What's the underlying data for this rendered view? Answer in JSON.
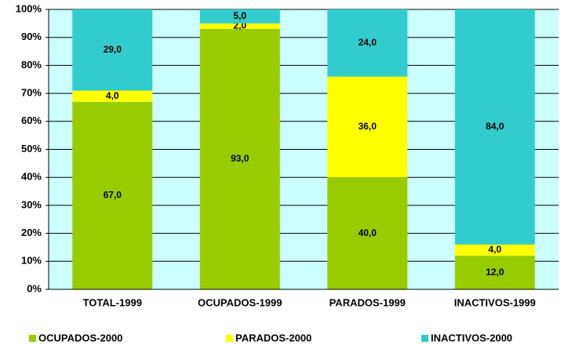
{
  "chart_data": {
    "type": "stacked_bar_100",
    "categories": [
      "TOTAL-1999",
      "OCUPADOS-1999",
      "PARADOS-1999",
      "INACTIVOS-1999"
    ],
    "series": [
      {
        "name": "OCUPADOS-2000",
        "color": "#99cc00",
        "values": [
          67,
          93,
          40,
          12
        ],
        "value_labels": [
          "67,0",
          "93,0",
          "40,0",
          "12,0"
        ]
      },
      {
        "name": "PARADOS-2000",
        "color": "#ffff00",
        "values": [
          4,
          2,
          36,
          4
        ],
        "value_labels": [
          "4,0",
          "2,0",
          "36,0",
          "4,0"
        ]
      },
      {
        "name": "INACTIVOS-2000",
        "color": "#33cccc",
        "values": [
          29,
          5,
          24,
          84
        ],
        "value_labels": [
          "29,0",
          "5,0",
          "24,0",
          "84,0"
        ]
      }
    ],
    "ylim": [
      0,
      100
    ],
    "yticks": [
      {
        "value": 0,
        "label": "0%"
      },
      {
        "value": 10,
        "label": "10%"
      },
      {
        "value": 20,
        "label": "20%"
      },
      {
        "value": 30,
        "label": "30%"
      },
      {
        "value": 40,
        "label": "40%"
      },
      {
        "value": 50,
        "label": "50%"
      },
      {
        "value": 60,
        "label": "60%"
      },
      {
        "value": 70,
        "label": "70%"
      },
      {
        "value": 80,
        "label": "80%"
      },
      {
        "value": 90,
        "label": "90%"
      },
      {
        "value": 100,
        "label": "100%"
      }
    ],
    "grid": true,
    "plot_background": "#ccffff",
    "legend": "bottom"
  }
}
